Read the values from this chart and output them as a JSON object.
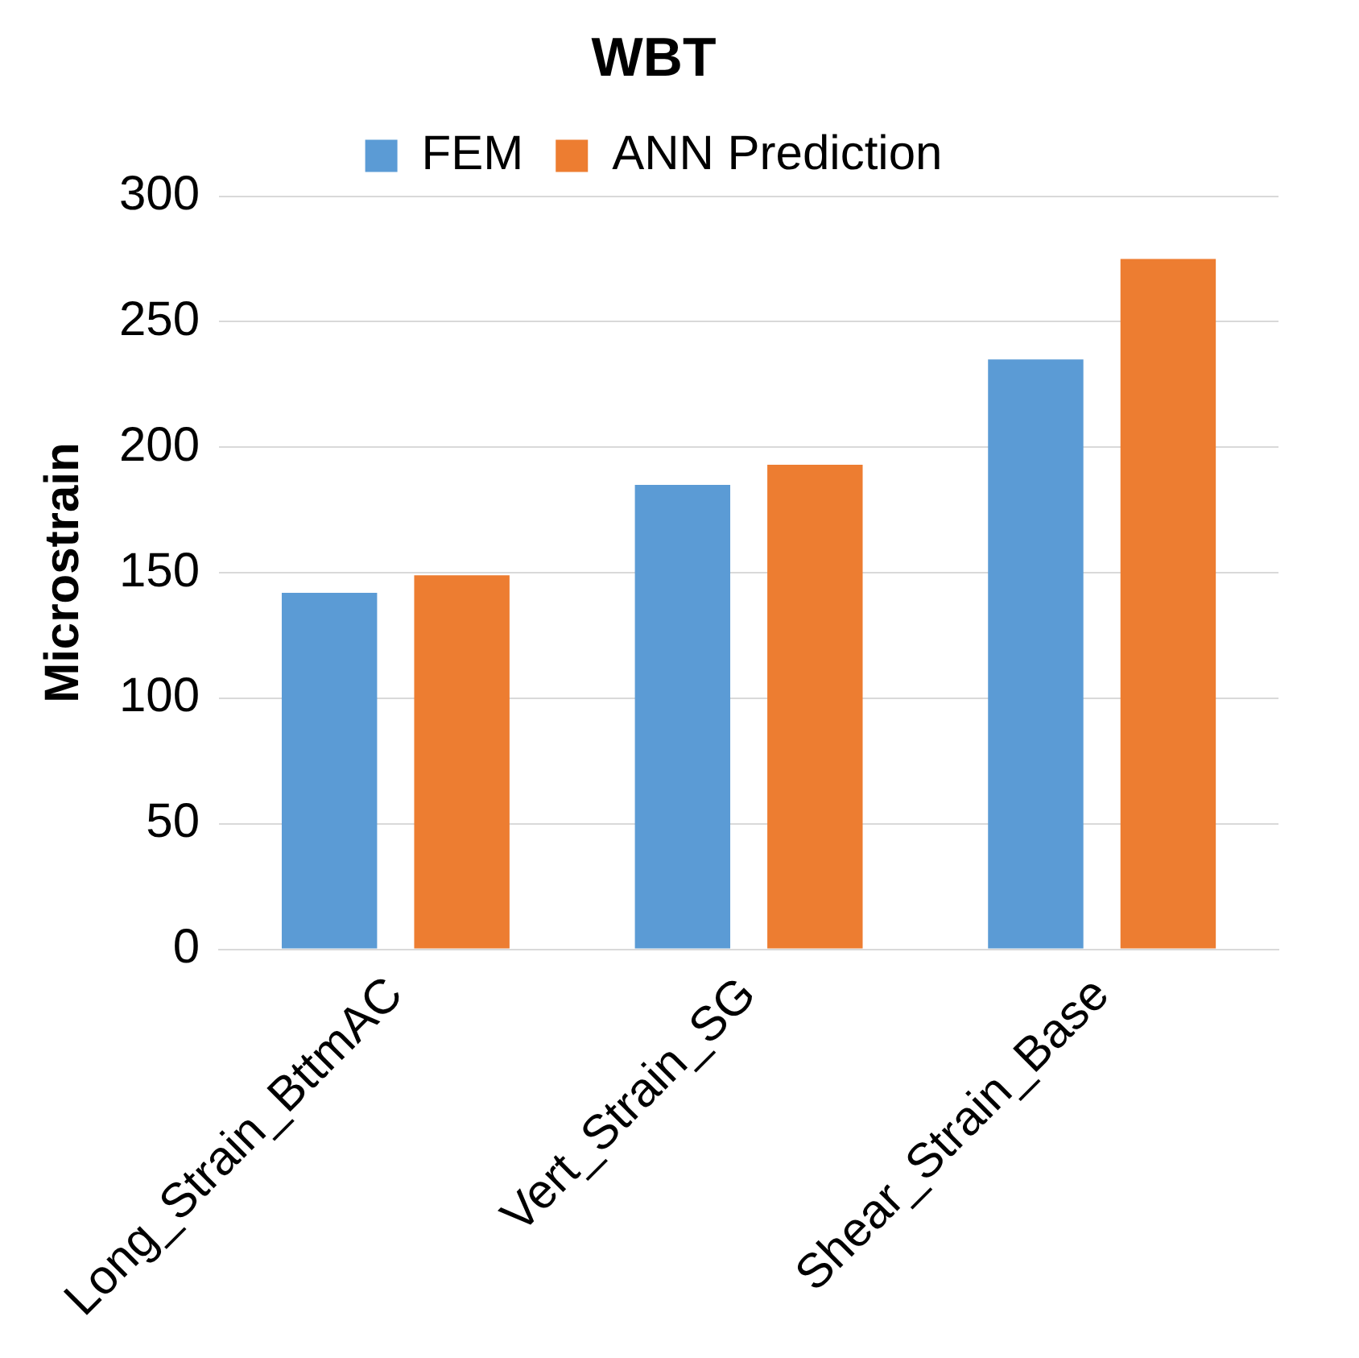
{
  "chart_data": {
    "type": "bar",
    "title": "WBT",
    "ylabel": "Microstrain",
    "categories": [
      "Long_Strain_BttmAC",
      "Vert_Strain_SG",
      "Shear_Strain_Base"
    ],
    "series": [
      {
        "name": "FEM",
        "color": "#5b9bd5",
        "values": [
          142,
          185,
          235
        ]
      },
      {
        "name": "ANN Prediction",
        "color": "#ed7d31",
        "values": [
          149,
          193,
          275
        ]
      }
    ],
    "ylim": [
      0,
      300
    ],
    "yticks": [
      0,
      50,
      100,
      150,
      200,
      250,
      300
    ],
    "grid": "y",
    "legend": "top"
  }
}
